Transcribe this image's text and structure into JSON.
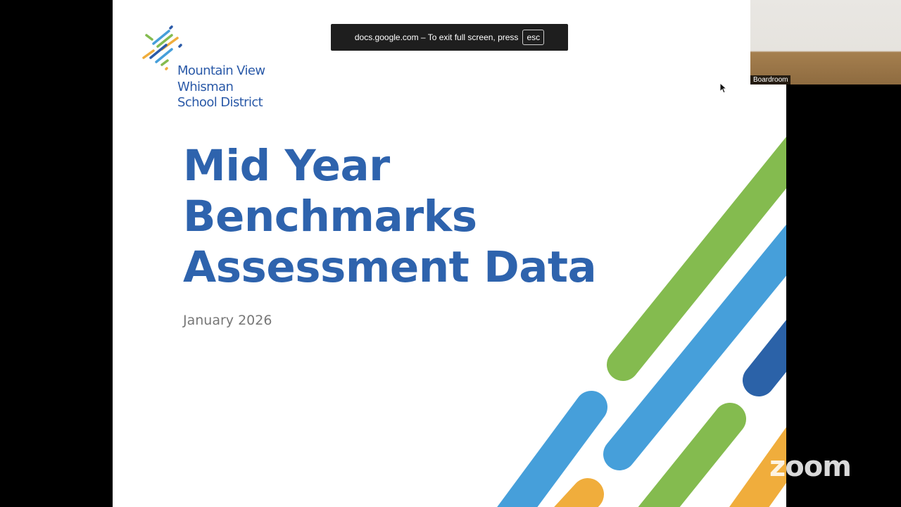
{
  "slide": {
    "logo_lines": [
      "Mountain View",
      "Whisman",
      "School District"
    ],
    "title_lines": [
      "Mid Year",
      "Benchmarks",
      "Assessment Data"
    ],
    "date": "January 2026"
  },
  "toast": {
    "message": "docs.google.com – To exit full screen, press",
    "key": "esc"
  },
  "video": {
    "label": "Boardroom"
  },
  "watermark": "zoom",
  "colors": {
    "brand_blue": "#2e63ad",
    "green": "#84bb4f",
    "light_blue": "#469fda",
    "dark_blue": "#2b62a8",
    "orange": "#f0ad3c"
  }
}
